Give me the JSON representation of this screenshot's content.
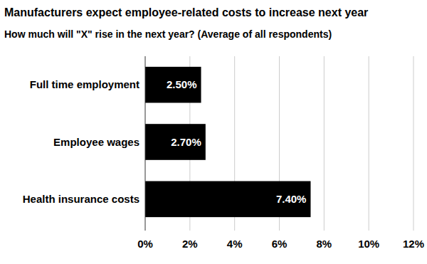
{
  "chart_data": {
    "type": "bar",
    "title": "Manufacturers expect employee-related costs to increase next year",
    "subtitle": "How much will \"X\" rise in the next year? (Average of all respondents)",
    "orientation": "horizontal",
    "categories": [
      "Full time employment",
      "Employee wages",
      "Health insurance costs"
    ],
    "values": [
      2.5,
      2.7,
      7.4
    ],
    "value_labels": [
      "2.50%",
      "2.70%",
      "7.40%"
    ],
    "color": "#000000",
    "xlim": [
      0,
      12
    ],
    "xticks": [
      {
        "value": 0,
        "label": "0%"
      },
      {
        "value": 2,
        "label": "2%"
      },
      {
        "value": 4,
        "label": "4%"
      },
      {
        "value": 6,
        "label": "6%"
      },
      {
        "value": 8,
        "label": "8%"
      },
      {
        "value": 10,
        "label": "10%"
      },
      {
        "value": 12,
        "label": "12%"
      }
    ],
    "grid": true,
    "data_labels": true
  }
}
